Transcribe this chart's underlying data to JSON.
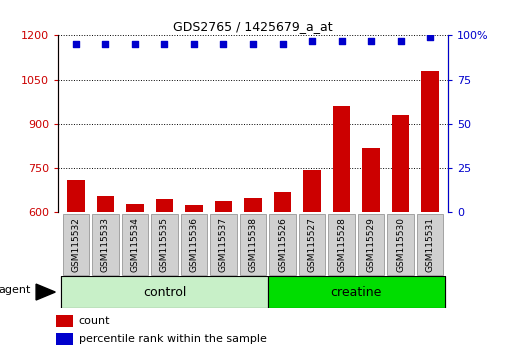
{
  "title": "GDS2765 / 1425679_a_at",
  "samples": [
    "GSM115532",
    "GSM115533",
    "GSM115534",
    "GSM115535",
    "GSM115536",
    "GSM115537",
    "GSM115538",
    "GSM115526",
    "GSM115527",
    "GSM115528",
    "GSM115529",
    "GSM115530",
    "GSM115531"
  ],
  "counts": [
    710,
    655,
    630,
    645,
    625,
    640,
    650,
    668,
    745,
    960,
    820,
    930,
    1080
  ],
  "percentile_ranks": [
    95,
    95,
    95,
    95,
    95,
    95,
    95,
    95,
    97,
    97,
    97,
    97,
    99
  ],
  "groups": [
    "control",
    "control",
    "control",
    "control",
    "control",
    "control",
    "control",
    "creatine",
    "creatine",
    "creatine",
    "creatine",
    "creatine",
    "creatine"
  ],
  "group_colors": {
    "control": "#c8f0c8",
    "creatine": "#00dd00"
  },
  "bar_color": "#cc0000",
  "dot_color": "#0000cc",
  "ylim_left": [
    600,
    1200
  ],
  "ylim_right": [
    0,
    100
  ],
  "yticks_left": [
    600,
    750,
    900,
    1050,
    1200
  ],
  "yticks_right": [
    0,
    25,
    50,
    75,
    100
  ],
  "left_axis_color": "#cc0000",
  "right_axis_color": "#0000cc",
  "agent_label": "agent",
  "legend_count": "count",
  "legend_percentile": "percentile rank within the sample",
  "background_color": "#ffffff",
  "plot_bg_color": "#ffffff",
  "tick_label_bg": "#d0d0d0"
}
